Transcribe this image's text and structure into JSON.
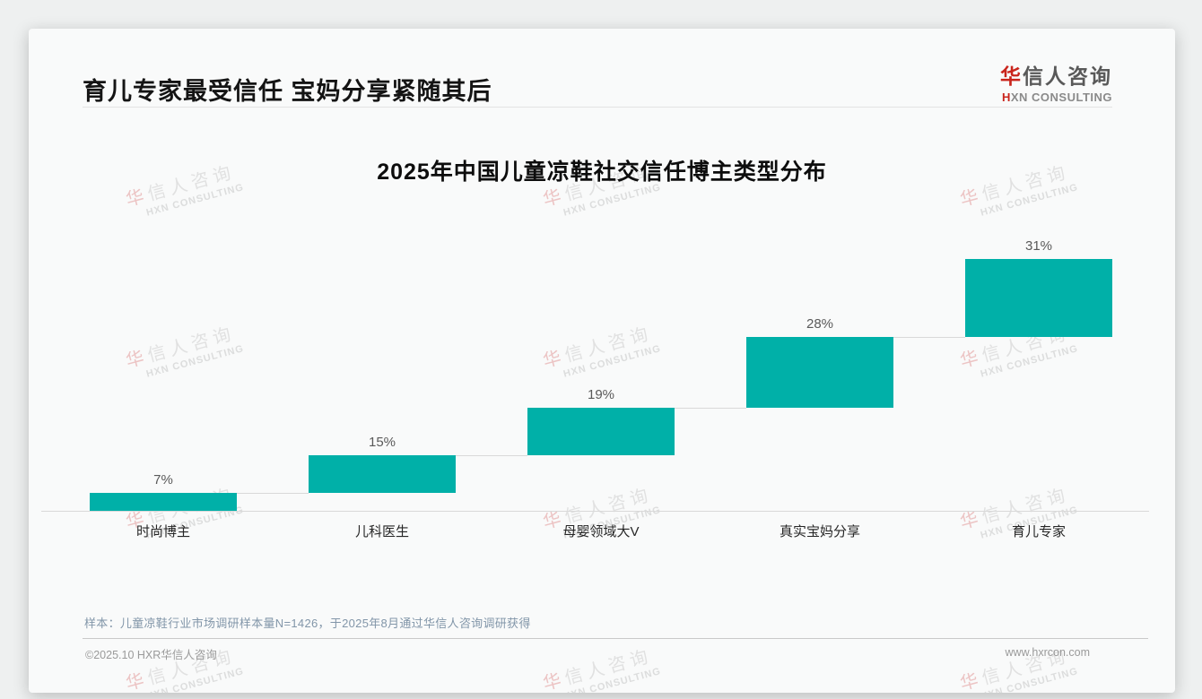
{
  "page": {
    "header": {
      "title": "育儿专家最受信任 宝妈分享紧随其后"
    },
    "logo": {
      "cn_first": "华",
      "cn_rest": "信人咨询",
      "en_first": "H",
      "en_rest": "XN CONSULTING"
    },
    "watermark": {
      "cn_first": "华",
      "cn_rest": "信人咨询",
      "en": "HXN CONSULTING"
    },
    "footnote": "样本：儿童凉鞋行业市场调研样本量N=1426，于2025年8月通过华信人咨询调研获得",
    "footer": {
      "left": "©2025.10 HXR华信人咨询",
      "right": "www.hxrcon.com"
    }
  },
  "chart_data": {
    "type": "bar",
    "subtype": "waterfall-step",
    "title": "2025年中国儿童凉鞋社交信任博主类型分布",
    "categories": [
      "时尚博主",
      "儿科医生",
      "母婴领域大V",
      "真实宝妈分享",
      "育儿专家"
    ],
    "values": [
      7,
      15,
      19,
      28,
      31
    ],
    "value_labels": [
      "7%",
      "15%",
      "19%",
      "28%",
      "31%"
    ],
    "cumulative": [
      7,
      22,
      41,
      69,
      100
    ],
    "unit": "%",
    "ylim": [
      0,
      100
    ],
    "grid": false,
    "legend": "none",
    "bar_color": "#00B0A8",
    "connector_color": "#d9d9d9",
    "layout_note": "each bar starts where the previous cumulative total ended; thin gray connector lines bridge gaps; totals sum to 100%"
  },
  "colors": {
    "accent_red": "#c9251c",
    "teal": "#00B0A8",
    "footnote_blue_gray": "#8296a9",
    "label_gray": "#595959"
  }
}
